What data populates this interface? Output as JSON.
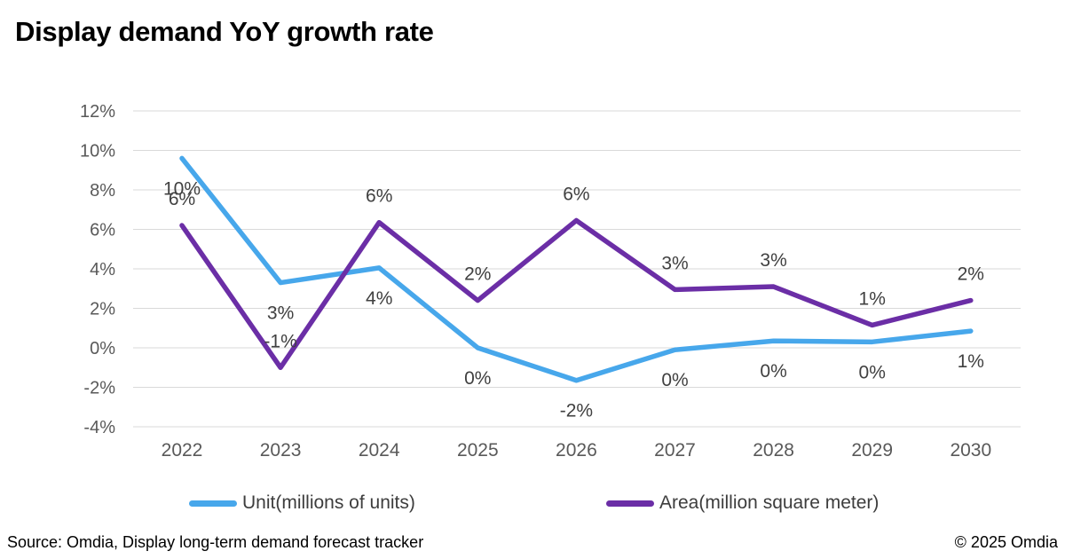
{
  "page": {
    "title": "Display demand YoY growth rate"
  },
  "chart_data": {
    "type": "line",
    "title": "Display demand YoY growth rate",
    "categories": [
      "2022",
      "2023",
      "2024",
      "2025",
      "2026",
      "2027",
      "2028",
      "2029",
      "2030"
    ],
    "series": [
      {
        "name": "Unit(millions of units)",
        "color": "#47A7EB",
        "label_position": "below",
        "values": [
          9.6,
          3.3,
          4.05,
          0.0,
          -1.65,
          -0.1,
          0.35,
          0.3,
          0.85
        ],
        "point_labels": [
          "10%",
          "3%",
          "4%",
          "0%",
          "-2%",
          "0%",
          "0%",
          "0%",
          "1%"
        ]
      },
      {
        "name": "Area(million square meter)",
        "color": "#6B2EA6",
        "label_position": "above",
        "values": [
          6.2,
          -1.0,
          6.35,
          2.4,
          6.45,
          2.95,
          3.1,
          1.15,
          2.4
        ],
        "point_labels": [
          "6%",
          "-1%",
          "6%",
          "2%",
          "6%",
          "3%",
          "3%",
          "1%",
          "2%"
        ]
      }
    ],
    "xlabel": "",
    "ylabel": "",
    "ylim": [
      -4,
      12
    ],
    "yticks": [
      {
        "value": 12,
        "label": "12%"
      },
      {
        "value": 10,
        "label": "10%"
      },
      {
        "value": 8,
        "label": "8%"
      },
      {
        "value": 6,
        "label": "6%"
      },
      {
        "value": 4,
        "label": "4%"
      },
      {
        "value": 2,
        "label": "2%"
      },
      {
        "value": 0,
        "label": "0%"
      },
      {
        "value": -2,
        "label": "-2%"
      },
      {
        "value": -4,
        "label": "-4%"
      }
    ],
    "grid": true,
    "legend_position": "bottom",
    "colors": {
      "grid": "#D9D9D9",
      "axis_text": "#595959",
      "data_label_text": "#404040"
    }
  },
  "legend": {
    "items": [
      {
        "label": "Unit(millions of units)",
        "color": "#47A7EB"
      },
      {
        "label": "Area(million square meter)",
        "color": "#6B2EA6"
      }
    ]
  },
  "footer": {
    "source": "Source: Omdia, Display long-term demand forecast tracker",
    "copyright": "© 2025 Omdia"
  }
}
